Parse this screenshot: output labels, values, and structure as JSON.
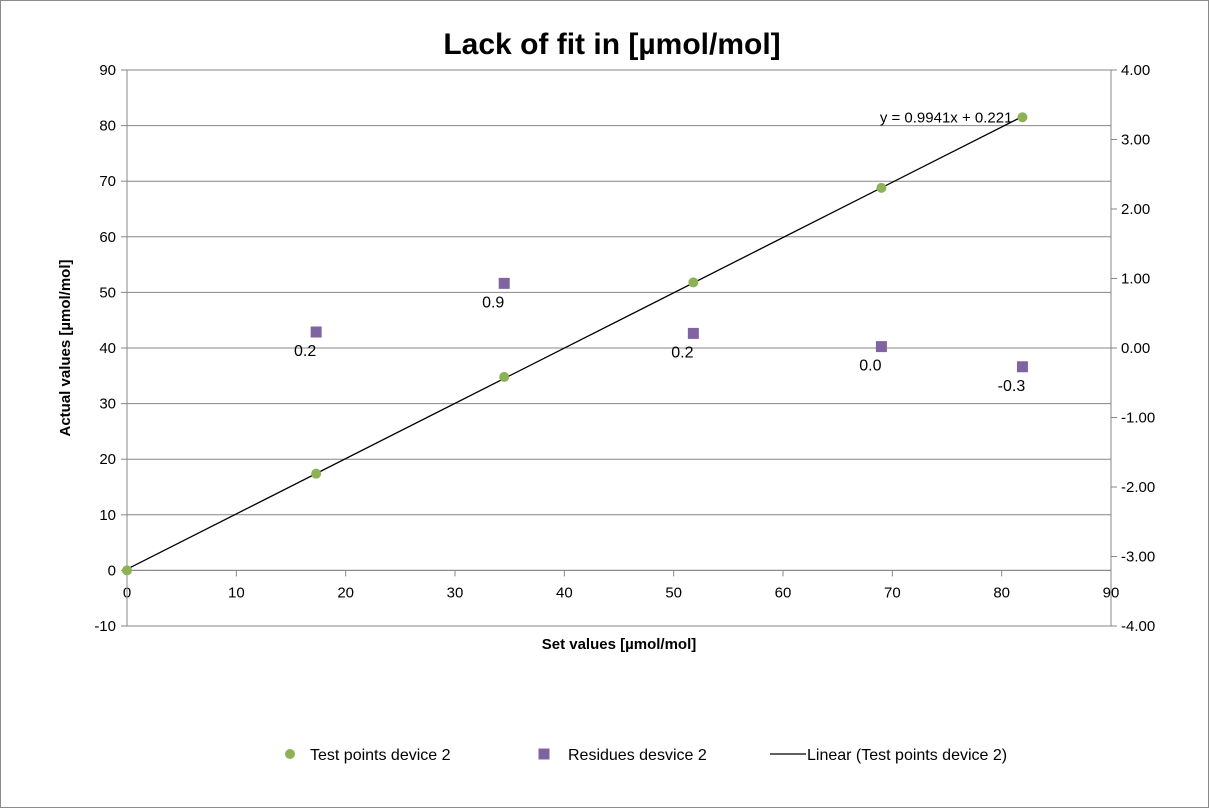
{
  "chart_data": {
    "type": "scatter",
    "title": "Lack of fit in [µmol/mol]",
    "xlabel": "Set values [µmol/mol]",
    "ylabel": "Actual values [µmol/mol]",
    "xlim": [
      0,
      90
    ],
    "ylim": [
      -10,
      90
    ],
    "y2lim": [
      -4,
      4
    ],
    "x_ticks": [
      "0",
      "10",
      "20",
      "30",
      "40",
      "50",
      "60",
      "70",
      "80",
      "90"
    ],
    "y_ticks": [
      "-10",
      "0",
      "10",
      "20",
      "30",
      "40",
      "50",
      "60",
      "70",
      "80",
      "90"
    ],
    "y2_ticks": [
      "-4.00",
      "-3.00",
      "-2.00",
      "-1.00",
      "0.00",
      "1.00",
      "2.00",
      "3.00",
      "4.00"
    ],
    "grid": true,
    "legend_position": "bottom",
    "series": [
      {
        "name": "Test points device 2",
        "marker": "circle",
        "color": "#8db255",
        "axis": "left",
        "x": [
          0,
          17.3,
          34.5,
          51.8,
          69.0,
          81.9
        ],
        "y": [
          0,
          17.4,
          34.8,
          51.8,
          68.8,
          81.5
        ]
      },
      {
        "name": "Residues desvice 2",
        "marker": "square",
        "color": "#8064a2",
        "axis": "right",
        "x": [
          17.3,
          34.5,
          51.8,
          69.0,
          81.9
        ],
        "y": [
          0.23,
          0.93,
          0.21,
          0.02,
          -0.27
        ],
        "labels": [
          "0.2",
          "0.9",
          "0.2",
          "0.0",
          "-0.3"
        ]
      }
    ],
    "trendline": {
      "name": "Linear (Test points device 2)",
      "color": "#000000",
      "slope": 0.9941,
      "intercept": 0.221,
      "x_range": [
        0,
        81.9
      ],
      "equation": "y = 0.9941x + 0.221"
    }
  }
}
